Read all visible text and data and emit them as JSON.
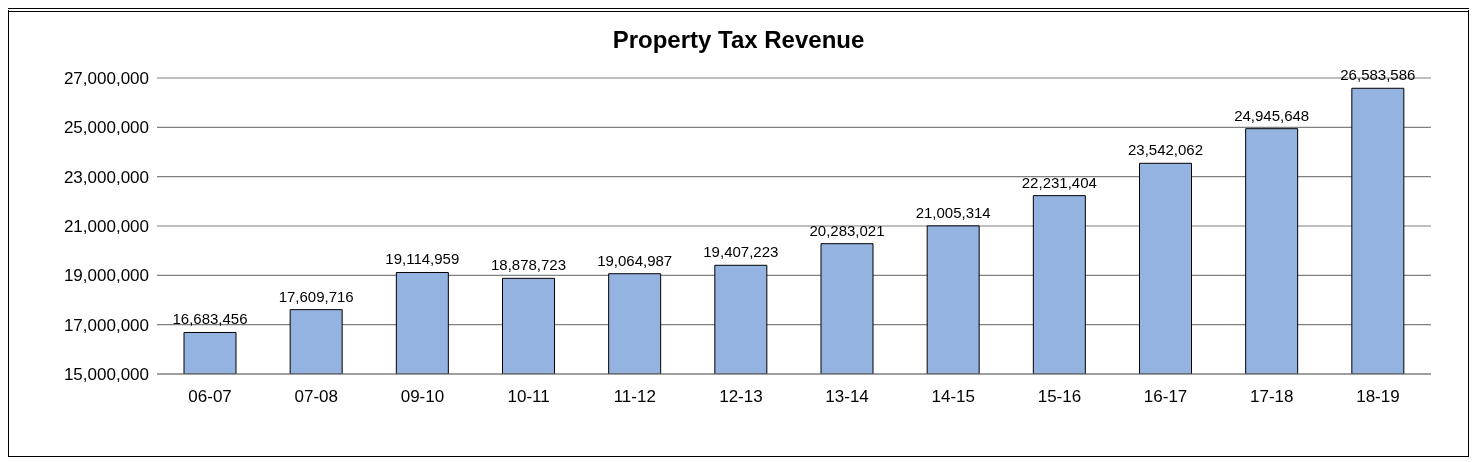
{
  "chart_data": {
    "type": "bar",
    "title": "Property Tax Revenue",
    "categories": [
      "06-07",
      "07-08",
      "09-10",
      "10-11",
      "11-12",
      "12-13",
      "13-14",
      "14-15",
      "15-16",
      "16-17",
      "17-18",
      "18-19"
    ],
    "values": [
      16683456,
      17609716,
      19114959,
      18878723,
      19064987,
      19407223,
      20283021,
      21005314,
      22231404,
      23542062,
      24945648,
      26583586
    ],
    "value_labels": [
      "16,683,456",
      "17,609,716",
      "19,114,959",
      "18,878,723",
      "19,064,987",
      "19,407,223",
      "20,283,021",
      "21,005,314",
      "22,231,404",
      "23,542,062",
      "24,945,648",
      "26,583,586"
    ],
    "color": "#95b3e0",
    "ylim": [
      15000000,
      27000000
    ],
    "yticks": [
      {
        "value": 15000000,
        "label": "15,000,000"
      },
      {
        "value": 17000000,
        "label": "17,000,000"
      },
      {
        "value": 19000000,
        "label": "19,000,000"
      },
      {
        "value": 21000000,
        "label": "21,000,000"
      },
      {
        "value": 23000000,
        "label": "23,000,000"
      },
      {
        "value": 25000000,
        "label": "25,000,000"
      },
      {
        "value": 27000000,
        "label": "27,000,000"
      }
    ],
    "grid": "y"
  }
}
